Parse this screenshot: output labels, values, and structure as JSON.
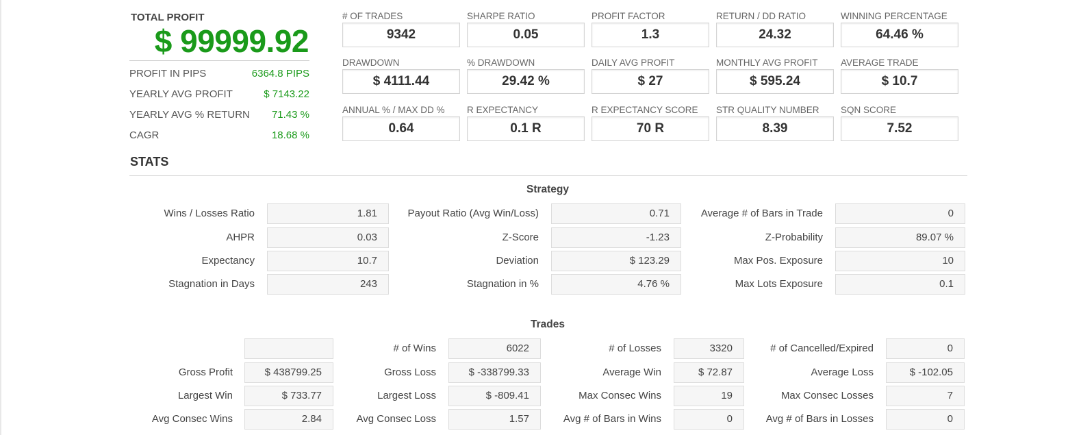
{
  "total_profit": {
    "label": "TOTAL PROFIT",
    "value": "$ 99999.92"
  },
  "summary": [
    {
      "label": "PROFIT IN PIPS",
      "value": "6364.8 PIPS"
    },
    {
      "label": "YEARLY AVG PROFIT",
      "value": "$ 7143.22"
    },
    {
      "label": "YEARLY AVG % RETURN",
      "value": "71.43 %"
    },
    {
      "label": "CAGR",
      "value": "18.68 %"
    }
  ],
  "metrics": [
    {
      "label": "# OF TRADES",
      "value": "9342"
    },
    {
      "label": "SHARPE RATIO",
      "value": "0.05"
    },
    {
      "label": "PROFIT FACTOR",
      "value": "1.3"
    },
    {
      "label": "RETURN / DD RATIO",
      "value": "24.32"
    },
    {
      "label": "WINNING PERCENTAGE",
      "value": "64.46 %"
    },
    {
      "label": "DRAWDOWN",
      "value": "$ 4111.44"
    },
    {
      "label": "% DRAWDOWN",
      "value": "29.42 %"
    },
    {
      "label": "DAILY AVG PROFIT",
      "value": "$ 27"
    },
    {
      "label": "MONTHLY AVG PROFIT",
      "value": "$ 595.24"
    },
    {
      "label": "AVERAGE TRADE",
      "value": "$ 10.7"
    },
    {
      "label": "ANNUAL % / MAX DD %",
      "value": "0.64"
    },
    {
      "label": "R EXPECTANCY",
      "value": "0.1 R"
    },
    {
      "label": "R EXPECTANCY SCORE",
      "value": "70 R"
    },
    {
      "label": "STR QUALITY NUMBER",
      "value": "8.39"
    },
    {
      "label": "SQN SCORE",
      "value": "7.52"
    }
  ],
  "stats_title": "STATS",
  "strategy": {
    "title": "Strategy",
    "rows": [
      [
        {
          "label": "Wins / Losses Ratio",
          "value": "1.81"
        },
        {
          "label": "Payout Ratio (Avg Win/Loss)",
          "value": "0.71"
        },
        {
          "label": "Average # of Bars in Trade",
          "value": "0"
        }
      ],
      [
        {
          "label": "AHPR",
          "value": "0.03"
        },
        {
          "label": "Z-Score",
          "value": "-1.23"
        },
        {
          "label": "Z-Probability",
          "value": "89.07 %"
        }
      ],
      [
        {
          "label": "Expectancy",
          "value": "10.7"
        },
        {
          "label": "Deviation",
          "value": "$ 123.29"
        },
        {
          "label": "Max Pos. Exposure",
          "value": "10"
        }
      ],
      [
        {
          "label": "Stagnation in Days",
          "value": "243"
        },
        {
          "label": "Stagnation in %",
          "value": "4.76 %"
        },
        {
          "label": "Max Lots Exposure",
          "value": "0.1"
        }
      ]
    ]
  },
  "trades": {
    "title": "Trades",
    "rows": [
      [
        {
          "label": "",
          "value": ""
        },
        {
          "label": "# of Wins",
          "value": "6022"
        },
        {
          "label": "# of Losses",
          "value": "3320"
        },
        {
          "label": "# of Cancelled/Expired",
          "value": "0"
        }
      ],
      [
        {
          "label": "Gross Profit",
          "value": "$ 438799.25"
        },
        {
          "label": "Gross Loss",
          "value": "$ -338799.33"
        },
        {
          "label": "Average Win",
          "value": "$ 72.87"
        },
        {
          "label": "Average Loss",
          "value": "$ -102.05"
        }
      ],
      [
        {
          "label": "Largest Win",
          "value": "$ 733.77"
        },
        {
          "label": "Largest Loss",
          "value": "$ -809.41"
        },
        {
          "label": "Max Consec Wins",
          "value": "19"
        },
        {
          "label": "Max Consec Losses",
          "value": "7"
        }
      ],
      [
        {
          "label": "Avg Consec Wins",
          "value": "2.84"
        },
        {
          "label": "Avg Consec Loss",
          "value": "1.57"
        },
        {
          "label": "Avg # of Bars in Wins",
          "value": "0"
        },
        {
          "label": "Avg # of Bars in Losses",
          "value": "0"
        }
      ]
    ]
  }
}
